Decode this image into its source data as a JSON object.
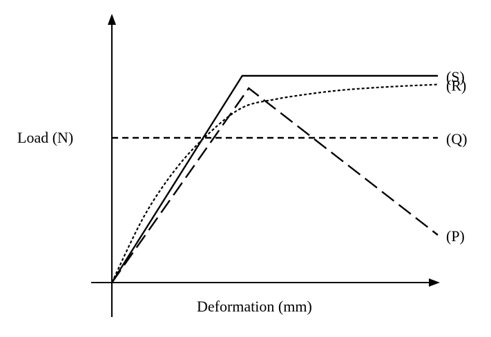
{
  "chart_data": {
    "type": "line",
    "title": "",
    "xlabel": "Deformation (mm)",
    "ylabel": "Load (N)",
    "xlim": [
      0,
      100
    ],
    "ylim": [
      0,
      100
    ],
    "grid": false,
    "legend": "none",
    "axis_color": "#000000",
    "series": [
      {
        "name": "(S)",
        "style": "solid",
        "x": [
          0,
          40,
          100
        ],
        "y": [
          0,
          100,
          100
        ]
      },
      {
        "name": "(R)",
        "style": "dotted",
        "x": [
          0,
          10,
          20,
          30,
          40,
          50,
          60,
          70,
          80,
          90,
          100
        ],
        "y": [
          0,
          32.4,
          55.7,
          72.5,
          84.6,
          88.6,
          91.1,
          93.0,
          94.2,
          95.1,
          95.8
        ]
      },
      {
        "name": "(Q)",
        "style": "short-dashed",
        "x": [
          0,
          100
        ],
        "y": [
          70,
          70
        ]
      },
      {
        "name": "(P)",
        "style": "long-dashed",
        "x": [
          0,
          42,
          100
        ],
        "y": [
          0,
          94,
          23
        ]
      }
    ]
  }
}
